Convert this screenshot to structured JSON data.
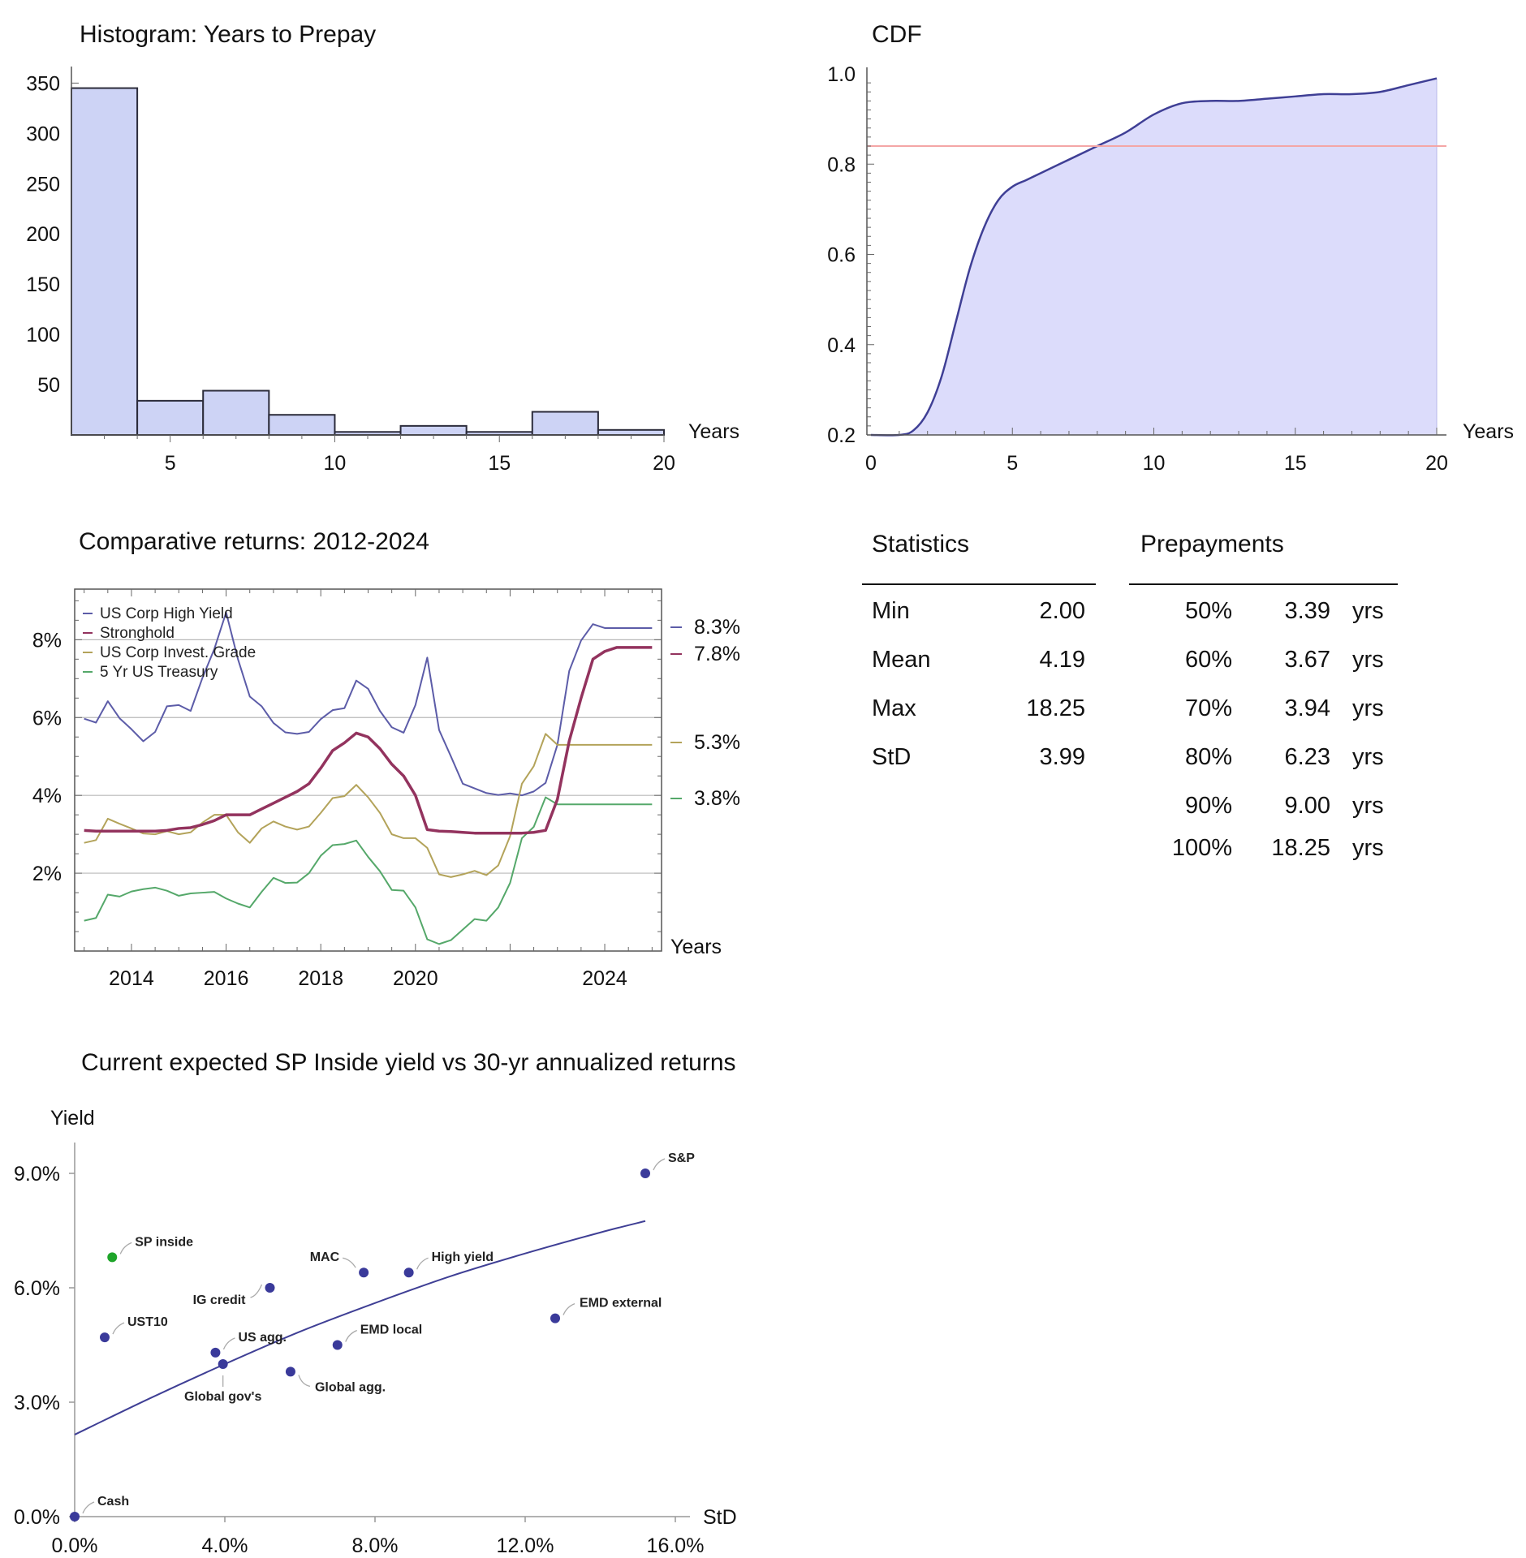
{
  "chart_data": [
    {
      "id": "histogram",
      "type": "bar",
      "title": "Histogram: Years to Prepay",
      "xlabel": "Years",
      "ylabel": "",
      "bin_edges": [
        2,
        4,
        6,
        8,
        10,
        12,
        14,
        16,
        18,
        20
      ],
      "values": [
        345,
        34,
        44,
        20,
        3,
        9,
        3,
        23,
        5
      ],
      "xlim": [
        2,
        20
      ],
      "ylim": [
        0,
        360
      ],
      "xticks": [
        5,
        10,
        15,
        20
      ],
      "yticks": [
        50,
        100,
        150,
        200,
        250,
        300,
        350
      ],
      "colors": {
        "fill": "#cdd3f5",
        "stroke": "#2b2b3a"
      }
    },
    {
      "id": "cdf",
      "type": "area",
      "title": "CDF",
      "xlabel": "Years",
      "ylabel": "",
      "x": [
        0,
        1,
        1.5,
        2,
        2.5,
        3,
        3.5,
        4,
        4.5,
        5,
        5.5,
        6,
        7,
        8,
        9,
        10,
        11,
        12,
        13,
        14,
        15,
        16,
        17,
        18,
        19,
        20
      ],
      "y": [
        0.2,
        0.2,
        0.21,
        0.25,
        0.33,
        0.45,
        0.57,
        0.66,
        0.72,
        0.75,
        0.765,
        0.78,
        0.81,
        0.84,
        0.87,
        0.91,
        0.935,
        0.94,
        0.94,
        0.945,
        0.95,
        0.955,
        0.955,
        0.96,
        0.975,
        0.99
      ],
      "reference_line_y": 0.84,
      "xlim": [
        0,
        20
      ],
      "ylim": [
        0.2,
        1.0
      ],
      "xticks": [
        0,
        5,
        10,
        15,
        20
      ],
      "yticks": [
        0.2,
        0.4,
        0.6,
        0.8,
        1.0
      ],
      "colors": {
        "fill": "#dcdcfb",
        "line": "#3f3f95",
        "reference": "#f4a6a6"
      }
    },
    {
      "id": "returns",
      "type": "line",
      "title": "Comparative returns: 2012-2024",
      "xlabel": "Years",
      "ylabel": "",
      "x": [
        2013.0,
        2013.25,
        2013.5,
        2013.75,
        2014.0,
        2014.25,
        2014.5,
        2014.75,
        2015.0,
        2015.25,
        2015.5,
        2015.75,
        2016.0,
        2016.25,
        2016.5,
        2016.75,
        2017.0,
        2017.25,
        2017.5,
        2017.75,
        2018.0,
        2018.25,
        2018.5,
        2018.75,
        2019.0,
        2019.25,
        2019.5,
        2019.75,
        2020.0,
        2020.25,
        2020.5,
        2020.75,
        2021.0,
        2021.25,
        2021.5,
        2021.75,
        2022.0,
        2022.25,
        2022.5,
        2022.75,
        2023.0,
        2023.25,
        2023.5,
        2023.75,
        2024.0,
        2024.25,
        2024.5,
        2024.75,
        2025.0
      ],
      "series": [
        {
          "name": "US Corp High Yield",
          "color": "#5c5ca8",
          "width": 2,
          "values": [
            5.97,
            5.87,
            6.42,
            5.98,
            5.7,
            5.39,
            5.63,
            6.29,
            6.32,
            6.17,
            7.02,
            7.76,
            8.7,
            7.5,
            6.54,
            6.29,
            5.86,
            5.62,
            5.58,
            5.63,
            5.96,
            6.19,
            6.24,
            6.95,
            6.74,
            6.17,
            5.75,
            5.61,
            6.32,
            7.54,
            5.68,
            5.0,
            4.3,
            4.18,
            4.06,
            4.01,
            4.05,
            4.0,
            4.1,
            4.32,
            5.3,
            7.2,
            7.98,
            8.4,
            8.3,
            8.3,
            8.3,
            8.3,
            8.3
          ]
        },
        {
          "name": "Stronghold",
          "color": "#93335e",
          "width": 3.5,
          "values": [
            3.1,
            3.08,
            3.08,
            3.08,
            3.08,
            3.08,
            3.08,
            3.1,
            3.15,
            3.17,
            3.25,
            3.35,
            3.5,
            3.5,
            3.5,
            3.65,
            3.8,
            3.95,
            4.1,
            4.3,
            4.7,
            5.15,
            5.35,
            5.6,
            5.5,
            5.2,
            4.8,
            4.5,
            4.0,
            3.12,
            3.08,
            3.07,
            3.05,
            3.03,
            3.03,
            3.03,
            3.03,
            3.03,
            3.05,
            3.1,
            3.9,
            5.4,
            6.5,
            7.5,
            7.7,
            7.8,
            7.8,
            7.8,
            7.8
          ]
        },
        {
          "name": "US Corp Invest. Grade",
          "color": "#b3a35a",
          "width": 2,
          "values": [
            2.78,
            2.85,
            3.4,
            3.27,
            3.15,
            3.02,
            3.0,
            3.08,
            3.0,
            3.05,
            3.3,
            3.5,
            3.5,
            3.05,
            2.78,
            3.15,
            3.33,
            3.2,
            3.12,
            3.2,
            3.55,
            3.93,
            3.98,
            4.27,
            3.95,
            3.55,
            3.0,
            2.9,
            2.9,
            2.65,
            1.97,
            1.9,
            1.97,
            2.06,
            1.95,
            2.2,
            2.95,
            4.3,
            4.75,
            5.58,
            5.3,
            5.3,
            5.3,
            5.3,
            5.3,
            5.3,
            5.3,
            5.3,
            5.3
          ]
        },
        {
          "name": "5 Yr US Treasury",
          "color": "#55a86a",
          "width": 2,
          "values": [
            0.78,
            0.85,
            1.45,
            1.4,
            1.53,
            1.59,
            1.63,
            1.55,
            1.42,
            1.48,
            1.5,
            1.52,
            1.35,
            1.22,
            1.12,
            1.52,
            1.88,
            1.75,
            1.76,
            2.0,
            2.45,
            2.72,
            2.75,
            2.84,
            2.42,
            2.05,
            1.57,
            1.55,
            1.12,
            0.3,
            0.18,
            0.28,
            0.55,
            0.82,
            0.78,
            1.12,
            1.75,
            2.9,
            3.19,
            3.95,
            3.77,
            3.77,
            3.77,
            3.77,
            3.77,
            3.77,
            3.77,
            3.77,
            3.77
          ]
        }
      ],
      "end_labels": [
        "8.3%",
        "7.8%",
        "5.3%",
        "3.8%"
      ],
      "end_values": [
        8.3,
        7.8,
        5.3,
        3.8
      ],
      "xlim": [
        2012.8,
        2025.2
      ],
      "ylim": [
        0,
        9.3
      ],
      "xticks": [
        2014,
        2016,
        2018,
        2020,
        2024
      ],
      "yticks": [
        2,
        4,
        6,
        8
      ],
      "ytick_labels": [
        "2%",
        "4%",
        "6%",
        "8%"
      ],
      "grid": true,
      "legend": "top-left"
    },
    {
      "id": "scatter",
      "type": "scatter",
      "title": "Current expected SP Inside yield vs 30-yr annualized returns",
      "xlabel": "StD",
      "ylabel": "Yield",
      "points": [
        {
          "label": "Cash",
          "x": 0.0,
          "y": 0.0,
          "color": "#3a3a9a"
        },
        {
          "label": "UST10",
          "x": 0.8,
          "y": 4.7,
          "color": "#3a3a9a"
        },
        {
          "label": "SP inside",
          "x": 1.0,
          "y": 6.8,
          "color": "#1fa52a"
        },
        {
          "label": "US agg.",
          "x": 3.75,
          "y": 4.3,
          "color": "#3a3a9a"
        },
        {
          "label": "Global gov's",
          "x": 3.95,
          "y": 4.0,
          "color": "#3a3a9a"
        },
        {
          "label": "IG credit",
          "x": 5.2,
          "y": 6.0,
          "color": "#3a3a9a"
        },
        {
          "label": "Global agg.",
          "x": 5.75,
          "y": 3.8,
          "color": "#3a3a9a"
        },
        {
          "label": "EMD local",
          "x": 7.0,
          "y": 4.5,
          "color": "#3a3a9a"
        },
        {
          "label": "MAC",
          "x": 7.7,
          "y": 6.4,
          "color": "#3a3a9a"
        },
        {
          "label": "High yield",
          "x": 8.9,
          "y": 6.4,
          "color": "#3a3a9a"
        },
        {
          "label": "EMD external",
          "x": 12.8,
          "y": 5.2,
          "color": "#3a3a9a"
        },
        {
          "label": "S&P",
          "x": 15.2,
          "y": 9.0,
          "color": "#3a3a9a"
        }
      ],
      "trend": {
        "x": [
          0,
          2,
          4,
          6,
          8,
          10,
          12,
          14,
          15.2
        ],
        "y": [
          2.15,
          3.1,
          4.0,
          4.85,
          5.6,
          6.3,
          6.9,
          7.45,
          7.75
        ],
        "color": "#3f3f95"
      },
      "xlim": [
        0,
        16.5
      ],
      "ylim": [
        0,
        10
      ],
      "xticks": [
        0,
        4,
        8,
        12,
        16
      ],
      "xtick_labels": [
        "0.0%",
        "4.0%",
        "8.0%",
        "12.0%",
        "16.0%"
      ],
      "yticks": [
        0,
        3,
        6,
        9
      ],
      "ytick_labels": [
        "0.0%",
        "3.0%",
        "6.0%",
        "9.0%"
      ]
    }
  ],
  "statistics": {
    "heading": "Statistics",
    "rows": [
      {
        "label": "Min",
        "value": "2.00"
      },
      {
        "label": "Mean",
        "value": "4.19"
      },
      {
        "label": "Max",
        "value": "18.25"
      },
      {
        "label": "StD",
        "value": "3.99"
      }
    ]
  },
  "prepayments": {
    "heading": "Prepayments",
    "rows": [
      {
        "pct": "50%",
        "value": "3.39",
        "unit": "yrs"
      },
      {
        "pct": "60%",
        "value": "3.67",
        "unit": "yrs"
      },
      {
        "pct": "70%",
        "value": "3.94",
        "unit": "yrs"
      },
      {
        "pct": "80%",
        "value": "6.23",
        "unit": "yrs"
      },
      {
        "pct": "90%",
        "value": "9.00",
        "unit": "yrs"
      },
      {
        "pct": "100%",
        "value": "18.25",
        "unit": "yrs"
      }
    ]
  }
}
